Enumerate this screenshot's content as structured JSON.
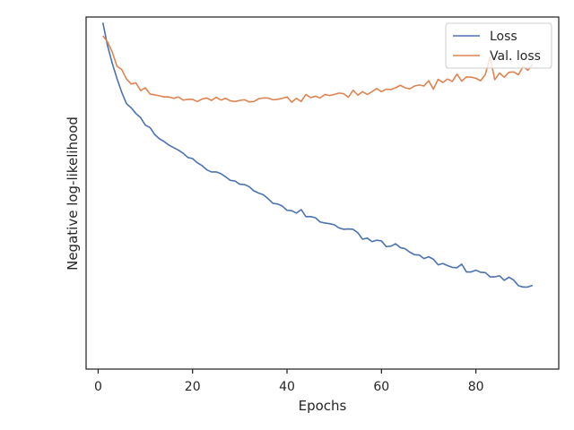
{
  "chart_data": {
    "type": "line",
    "title": "",
    "xlabel": "Epochs",
    "ylabel": "Negative log-likelihood",
    "xlim": [
      -2.55,
      97.55
    ],
    "ylim": [
      0.0,
      1.0
    ],
    "y_ticks_shown": false,
    "grid": false,
    "legend_placement": "top-right",
    "x_ticks": [
      0,
      20,
      40,
      60,
      80
    ],
    "series": [
      {
        "name": "Loss",
        "color": "#4c72b0",
        "x": [
          1,
          2,
          3,
          4,
          5,
          6,
          7,
          8,
          9,
          10,
          11,
          12,
          13,
          14,
          15,
          16,
          17,
          18,
          19,
          20,
          21,
          22,
          23,
          24,
          25,
          26,
          27,
          28,
          29,
          30,
          31,
          32,
          33,
          34,
          35,
          36,
          37,
          38,
          39,
          40,
          41,
          42,
          43,
          44,
          45,
          46,
          47,
          48,
          49,
          50,
          51,
          52,
          53,
          54,
          55,
          56,
          57,
          58,
          59,
          60,
          61,
          62,
          63,
          64,
          65,
          66,
          67,
          68,
          69,
          70,
          71,
          72,
          73,
          74,
          75,
          76,
          77,
          78,
          79,
          80,
          81,
          82,
          83,
          84,
          85,
          86,
          87,
          88,
          89,
          90,
          91,
          92
        ],
        "values": [
          0.984,
          0.918,
          0.868,
          0.825,
          0.786,
          0.754,
          0.742,
          0.726,
          0.714,
          0.693,
          0.686,
          0.666,
          0.654,
          0.646,
          0.636,
          0.629,
          0.622,
          0.613,
          0.601,
          0.598,
          0.586,
          0.578,
          0.566,
          0.56,
          0.56,
          0.555,
          0.546,
          0.536,
          0.534,
          0.525,
          0.524,
          0.518,
          0.506,
          0.5,
          0.495,
          0.484,
          0.471,
          0.469,
          0.463,
          0.451,
          0.45,
          0.443,
          0.453,
          0.433,
          0.433,
          0.43,
          0.418,
          0.415,
          0.413,
          0.41,
          0.401,
          0.397,
          0.398,
          0.397,
          0.387,
          0.369,
          0.372,
          0.362,
          0.366,
          0.364,
          0.348,
          0.349,
          0.356,
          0.345,
          0.342,
          0.332,
          0.325,
          0.324,
          0.314,
          0.319,
          0.312,
          0.296,
          0.3,
          0.294,
          0.289,
          0.288,
          0.298,
          0.276,
          0.276,
          0.281,
          0.275,
          0.274,
          0.262,
          0.262,
          0.265,
          0.252,
          0.261,
          0.253,
          0.237,
          0.233,
          0.233,
          0.238
        ]
      },
      {
        "name": "Val. loss",
        "color": "#dd8452",
        "x": [
          1,
          2,
          3,
          4,
          5,
          6,
          7,
          8,
          9,
          10,
          11,
          12,
          13,
          14,
          15,
          16,
          17,
          18,
          19,
          20,
          21,
          22,
          23,
          24,
          25,
          26,
          27,
          28,
          29,
          30,
          31,
          32,
          33,
          34,
          35,
          36,
          37,
          38,
          39,
          40,
          41,
          42,
          43,
          44,
          45,
          46,
          47,
          48,
          49,
          50,
          51,
          52,
          53,
          54,
          55,
          56,
          57,
          58,
          59,
          60,
          61,
          62,
          63,
          64,
          65,
          66,
          67,
          68,
          69,
          70,
          71,
          72,
          73,
          74,
          75,
          76,
          77,
          78,
          79,
          80,
          81,
          82,
          83,
          84,
          85,
          86,
          87,
          88,
          89,
          90,
          91,
          92
        ],
        "values": [
          0.947,
          0.929,
          0.9,
          0.86,
          0.851,
          0.824,
          0.81,
          0.813,
          0.791,
          0.799,
          0.781,
          0.779,
          0.776,
          0.773,
          0.773,
          0.769,
          0.773,
          0.764,
          0.766,
          0.766,
          0.76,
          0.767,
          0.77,
          0.763,
          0.772,
          0.764,
          0.769,
          0.762,
          0.76,
          0.763,
          0.765,
          0.759,
          0.76,
          0.768,
          0.77,
          0.77,
          0.765,
          0.766,
          0.769,
          0.773,
          0.758,
          0.769,
          0.76,
          0.78,
          0.771,
          0.775,
          0.77,
          0.78,
          0.777,
          0.78,
          0.784,
          0.782,
          0.772,
          0.792,
          0.778,
          0.788,
          0.78,
          0.788,
          0.797,
          0.788,
          0.795,
          0.794,
          0.799,
          0.806,
          0.799,
          0.796,
          0.804,
          0.807,
          0.804,
          0.819,
          0.795,
          0.823,
          0.814,
          0.824,
          0.817,
          0.838,
          0.818,
          0.83,
          0.829,
          0.826,
          0.819,
          0.837,
          0.886,
          0.822,
          0.841,
          0.829,
          0.843,
          0.844,
          0.836,
          0.859,
          0.849,
          0.865
        ]
      }
    ]
  }
}
